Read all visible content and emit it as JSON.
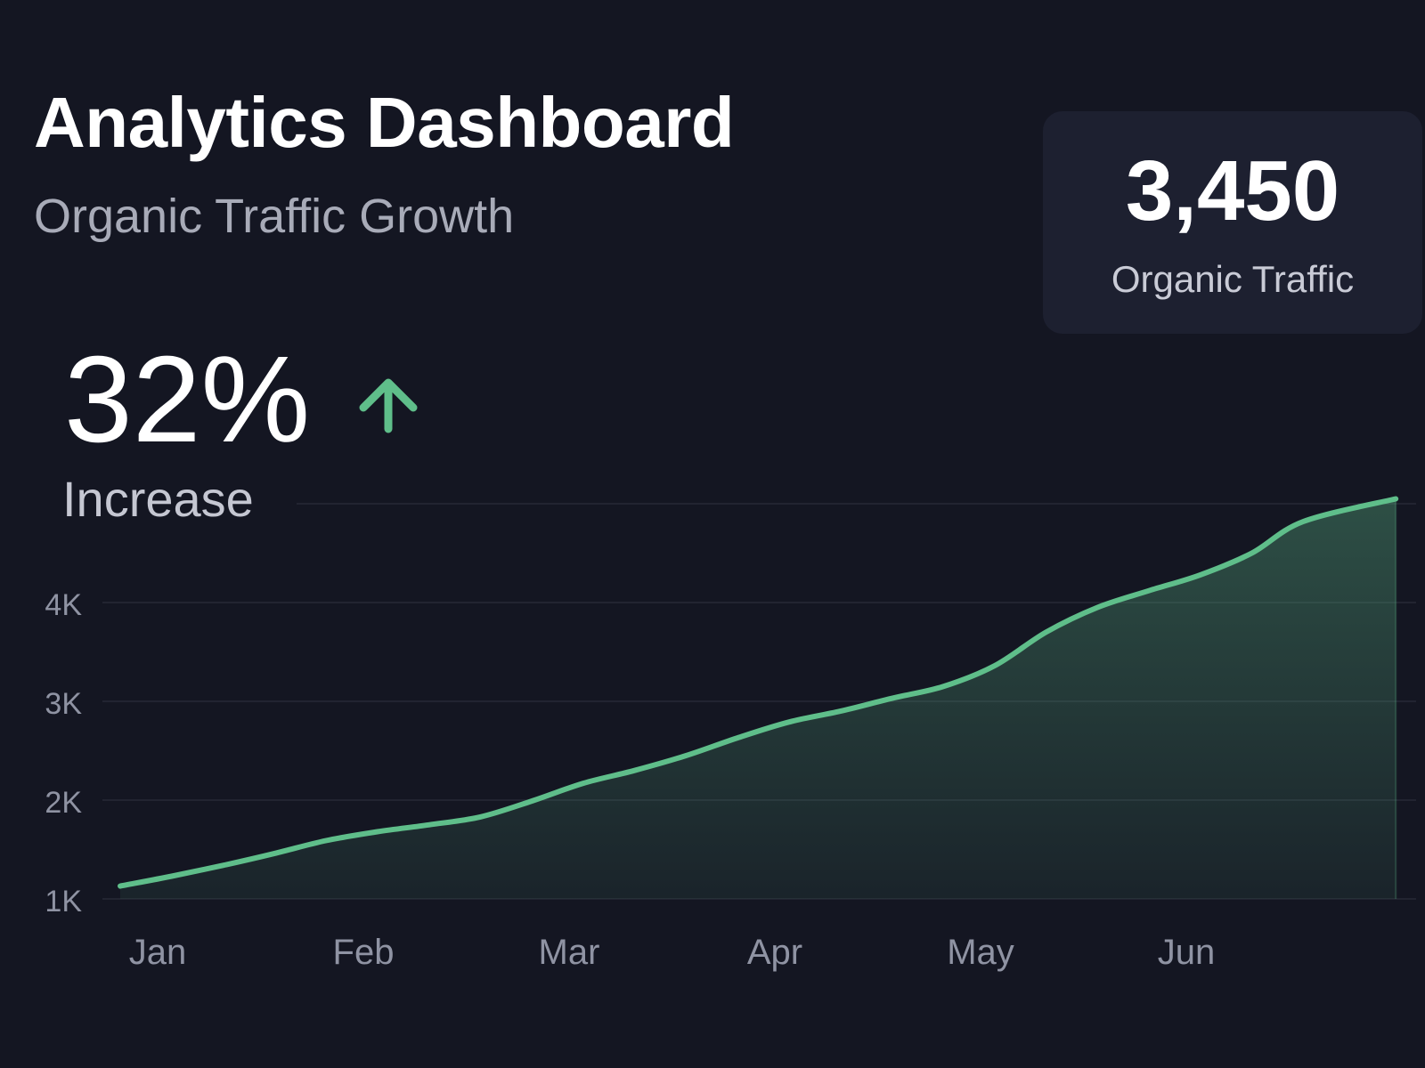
{
  "header": {
    "title": "Analytics Dashboard",
    "subtitle": "Organic Traffic Growth"
  },
  "kpi_card": {
    "value": "3,450",
    "label": "Organic Traffic"
  },
  "growth": {
    "percent": "32%",
    "label": "Increase",
    "icon": "arrow-up-icon"
  },
  "colors": {
    "background": "#141622",
    "card": "#1d2030",
    "accent": "#5fbe8a"
  },
  "chart_data": {
    "type": "area",
    "title": "",
    "xlabel": "",
    "ylabel": "",
    "categories": [
      "Jan",
      "Feb",
      "Mar",
      "Apr",
      "May",
      "Jun"
    ],
    "y_ticks": [
      "1K",
      "2K",
      "3K",
      "4K"
    ],
    "y_tick_values": [
      1000,
      2000,
      3000,
      4000
    ],
    "ylim": [
      1000,
      5000
    ],
    "grid": true,
    "legend": "none",
    "series": [
      {
        "x": [
          0.0,
          0.25,
          0.5,
          0.75,
          1.0,
          1.25,
          1.5,
          1.75,
          2.0,
          2.25,
          2.5,
          2.75,
          3.0,
          3.25,
          3.5,
          3.75,
          4.0,
          4.25,
          4.5,
          4.75,
          5.0,
          5.25,
          5.5,
          5.75,
          6.2
        ],
        "values": [
          1130,
          1230,
          1340,
          1460,
          1590,
          1680,
          1750,
          1830,
          1990,
          2170,
          2300,
          2450,
          2630,
          2790,
          2900,
          3030,
          3150,
          3360,
          3700,
          3950,
          4120,
          4280,
          4500,
          4820,
          5050
        ]
      }
    ]
  }
}
